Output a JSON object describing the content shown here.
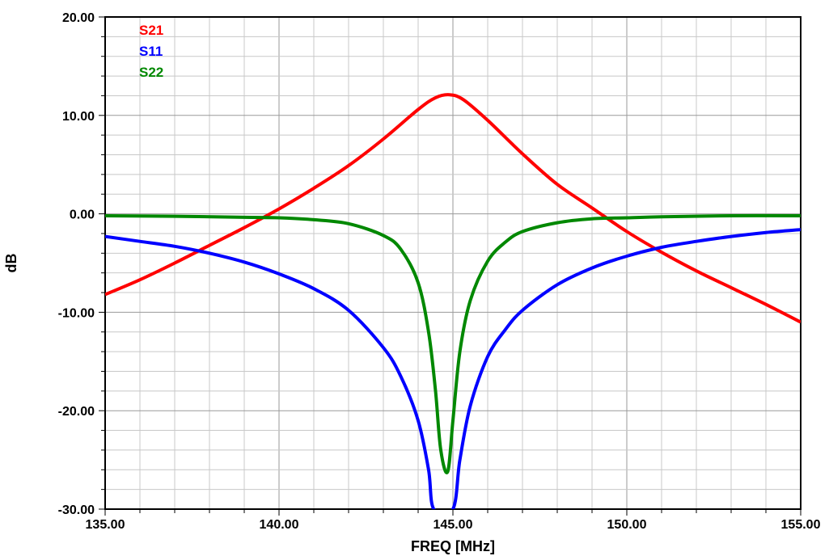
{
  "chart_data": {
    "type": "line",
    "xlabel": "FREQ [MHz]",
    "ylabel": "dB",
    "xlim": [
      135,
      155
    ],
    "ylim": [
      -30,
      20
    ],
    "x_ticks": [
      "135.00",
      "140.00",
      "145.00",
      "150.00",
      "155.00"
    ],
    "y_ticks": [
      "20.00",
      "10.00",
      "0.00",
      "-10.00",
      "-20.00",
      "-30.00"
    ],
    "grid": true,
    "legend_position": "top-left",
    "series": [
      {
        "name": "S21",
        "color": "#ff0000",
        "x": [
          135,
          136,
          137,
          138,
          139,
          140,
          141,
          142,
          143,
          144,
          144.5,
          144.9,
          145.3,
          146,
          147,
          148,
          149,
          150,
          151,
          152,
          153,
          154,
          155
        ],
        "y": [
          -8.2,
          -6.7,
          -5.0,
          -3.2,
          -1.4,
          0.5,
          2.6,
          4.9,
          7.6,
          10.6,
          11.8,
          12.1,
          11.6,
          9.5,
          6.1,
          3.0,
          0.6,
          -1.8,
          -3.9,
          -5.8,
          -7.5,
          -9.2,
          -11.0
        ]
      },
      {
        "name": "S11",
        "color": "#0000ff",
        "x": [
          135,
          136,
          137,
          138,
          139,
          140,
          141,
          142,
          143,
          143.5,
          144,
          144.3,
          144.45,
          145.0,
          145.2,
          145.5,
          146,
          146.5,
          147,
          148,
          149,
          150,
          151,
          152,
          153,
          154,
          155
        ],
        "y": [
          -2.3,
          -2.8,
          -3.3,
          -4.0,
          -4.9,
          -6.1,
          -7.6,
          -9.8,
          -13.6,
          -16.5,
          -21.0,
          -26.0,
          -30.0,
          -30.0,
          -25.0,
          -19.5,
          -14.5,
          -11.8,
          -9.8,
          -7.2,
          -5.5,
          -4.3,
          -3.4,
          -2.8,
          -2.3,
          -1.9,
          -1.6
        ]
      },
      {
        "name": "S22",
        "color": "#008800",
        "x": [
          135,
          137,
          139,
          140,
          141,
          142,
          143,
          143.5,
          144,
          144.3,
          144.5,
          144.65,
          144.85,
          145.0,
          145.2,
          145.5,
          146,
          146.5,
          147,
          148,
          149,
          150,
          151,
          153,
          155
        ],
        "y": [
          -0.2,
          -0.25,
          -0.35,
          -0.4,
          -0.6,
          -1.0,
          -2.2,
          -3.6,
          -7.0,
          -12.0,
          -18.0,
          -24.0,
          -26.2,
          -21.0,
          -14.0,
          -8.8,
          -4.8,
          -2.9,
          -1.8,
          -0.9,
          -0.5,
          -0.4,
          -0.3,
          -0.2,
          -0.2
        ]
      }
    ]
  }
}
